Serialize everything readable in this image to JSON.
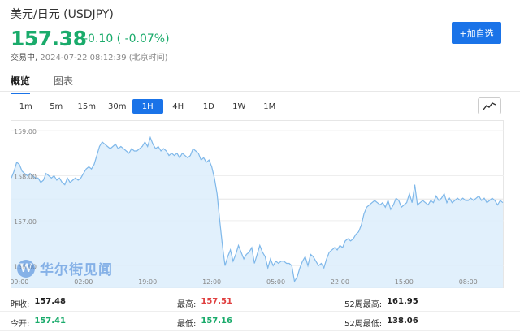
{
  "header": {
    "title": "美元/日元 (USDJPY)",
    "price": "157.38",
    "change": "-0.10 ( -0.07%)",
    "status_label": "交易中,",
    "timestamp": "2024-07-22 08:12:39 (北京时间)",
    "add_button": "+加自选"
  },
  "colors": {
    "up": "#e04040",
    "down": "#1aab6b",
    "accent": "#1a73e8",
    "area_fill": "#dcedfc",
    "line": "#7fb8ea"
  },
  "tabs": [
    {
      "label": "概览",
      "active": true
    },
    {
      "label": "图表",
      "active": false
    }
  ],
  "periods": [
    {
      "label": "1m",
      "active": false
    },
    {
      "label": "5m",
      "active": false
    },
    {
      "label": "15m",
      "active": false
    },
    {
      "label": "30m",
      "active": false
    },
    {
      "label": "1H",
      "active": true
    },
    {
      "label": "4H",
      "active": false
    },
    {
      "label": "1D",
      "active": false
    },
    {
      "label": "1W",
      "active": false
    },
    {
      "label": "1M",
      "active": false
    }
  ],
  "chart_type_icon": "line-chart-icon",
  "watermark": "华尔街见闻",
  "chart_data": {
    "type": "area",
    "ylim": [
      155.5,
      159.2
    ],
    "y_ticks": [
      156.0,
      157.0,
      158.0,
      159.0
    ],
    "y_tick_labels": [
      "156.00",
      "157.00",
      "158.00",
      "159.00"
    ],
    "x_tick_labels": [
      "09:00",
      "02:00",
      "19:00",
      "12:00",
      "05:00",
      "22:00",
      "15:00",
      "08:00"
    ],
    "x_tick_index": [
      3,
      27,
      51,
      75,
      99,
      123,
      147,
      171
    ],
    "reference_line": 157.48,
    "values": [
      157.95,
      158.1,
      158.3,
      158.25,
      158.1,
      158.05,
      158.0,
      158.05,
      158.0,
      157.95,
      157.95,
      157.85,
      157.9,
      158.05,
      158.0,
      157.95,
      158.0,
      157.9,
      157.95,
      157.85,
      157.8,
      157.95,
      157.85,
      157.9,
      157.95,
      157.9,
      157.95,
      158.05,
      158.15,
      158.2,
      158.15,
      158.25,
      158.45,
      158.65,
      158.75,
      158.7,
      158.65,
      158.6,
      158.65,
      158.7,
      158.6,
      158.65,
      158.6,
      158.55,
      158.5,
      158.6,
      158.55,
      158.55,
      158.6,
      158.65,
      158.75,
      158.65,
      158.85,
      158.7,
      158.6,
      158.65,
      158.55,
      158.6,
      158.55,
      158.45,
      158.5,
      158.45,
      158.5,
      158.4,
      158.5,
      158.45,
      158.4,
      158.45,
      158.6,
      158.55,
      158.5,
      158.35,
      158.4,
      158.3,
      158.35,
      158.2,
      157.95,
      157.6,
      157.0,
      156.45,
      156.0,
      156.2,
      156.35,
      156.1,
      156.25,
      156.45,
      156.3,
      156.15,
      156.25,
      156.3,
      156.4,
      156.05,
      156.25,
      156.45,
      156.3,
      156.2,
      155.95,
      156.15,
      156.0,
      156.1,
      156.05,
      156.1,
      156.1,
      156.05,
      156.05,
      156.0,
      155.65,
      155.75,
      155.95,
      156.1,
      156.2,
      156.0,
      156.25,
      156.2,
      156.1,
      156.0,
      156.05,
      155.95,
      156.15,
      156.3,
      156.35,
      156.4,
      156.35,
      156.45,
      156.4,
      156.55,
      156.6,
      156.55,
      156.6,
      156.7,
      156.75,
      156.9,
      157.15,
      157.3,
      157.35,
      157.4,
      157.45,
      157.4,
      157.35,
      157.4,
      157.3,
      157.45,
      157.25,
      157.35,
      157.5,
      157.45,
      157.3,
      157.35,
      157.4,
      157.6,
      157.4,
      157.8,
      157.35,
      157.4,
      157.45,
      157.4,
      157.35,
      157.45,
      157.4,
      157.55,
      157.45,
      157.5,
      157.6,
      157.4,
      157.5,
      157.4,
      157.45,
      157.5,
      157.45,
      157.5,
      157.45,
      157.45,
      157.5,
      157.45,
      157.5,
      157.55,
      157.45,
      157.5,
      157.4,
      157.45,
      157.5,
      157.45,
      157.35,
      157.45,
      157.4
    ]
  },
  "stats": [
    [
      {
        "label": "昨收:",
        "value": "157.48",
        "color": "#222222"
      },
      {
        "label": "最高:",
        "value": "157.51",
        "color": "#e04040"
      },
      {
        "label": "52周最高:",
        "value": "161.95",
        "color": "#222222"
      }
    ],
    [
      {
        "label": "今开:",
        "value": "157.41",
        "color": "#1aab6b"
      },
      {
        "label": "最低:",
        "value": "157.16",
        "color": "#1aab6b"
      },
      {
        "label": "52周最低:",
        "value": "138.06",
        "color": "#222222"
      }
    ]
  ]
}
